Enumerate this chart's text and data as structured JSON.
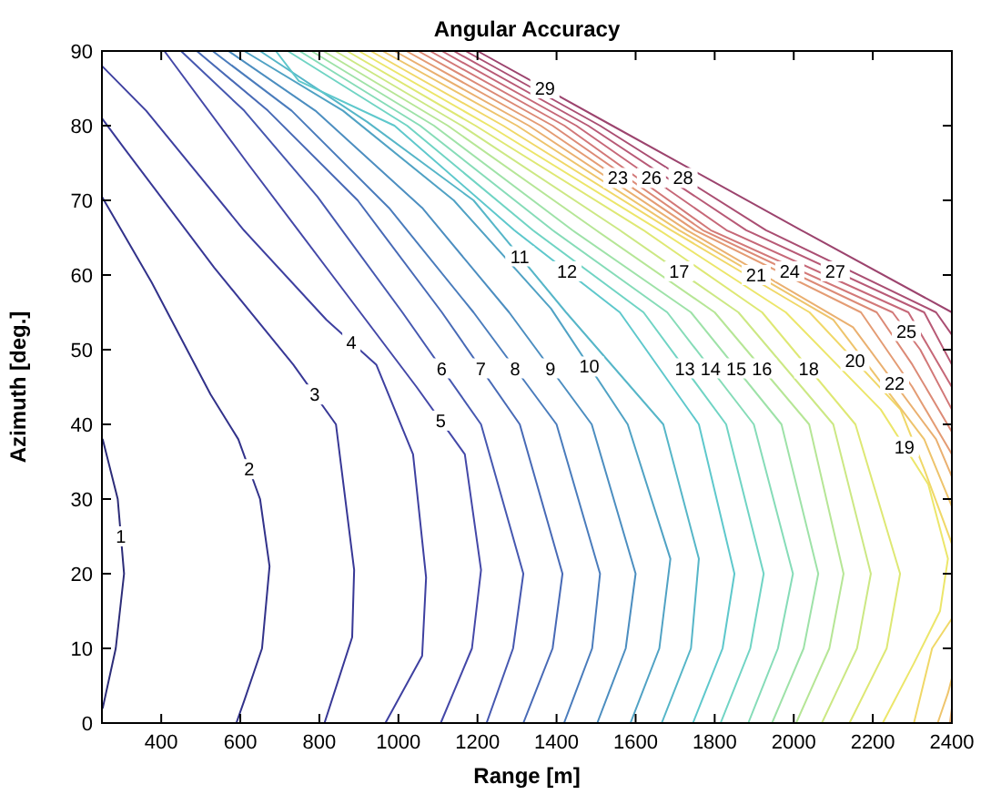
{
  "chart_data": {
    "type": "line",
    "title": "Angular Accuracy",
    "xlabel": "Range [m]",
    "ylabel": "Azimuth [deg.]",
    "xlim": [
      250,
      2400
    ],
    "ylim": [
      0,
      90
    ],
    "xticks": [
      400,
      600,
      800,
      1000,
      1200,
      1400,
      1600,
      1800,
      2000,
      2200,
      2400
    ],
    "yticks": [
      0,
      10,
      20,
      30,
      40,
      50,
      60,
      70,
      80,
      90
    ],
    "series": [
      {
        "name": "1",
        "color": "#2c2c78",
        "x": [
          252,
          285,
          306,
          290,
          252
        ],
        "values": [
          2,
          10,
          20,
          30,
          38
        ]
      },
      {
        "name": "2",
        "color": "#32328a",
        "x": [
          590,
          610,
          655,
          674,
          650,
          595,
          525,
          376,
          250
        ],
        "values": [
          0,
          3,
          10,
          21,
          30,
          38,
          44,
          59,
          70.5
        ]
      },
      {
        "name": "3",
        "color": "#383896",
        "x": [
          813,
          883,
          888,
          842,
          734,
          534,
          306,
          250
        ],
        "values": [
          0,
          11.5,
          20.5,
          40,
          48,
          61,
          77,
          81
        ]
      },
      {
        "name": "4",
        "color": "#3e40a0",
        "x": [
          967,
          1060,
          1070,
          1037,
          944,
          818,
          609,
          362,
          250
        ],
        "values": [
          0,
          9,
          19.5,
          36,
          48,
          54,
          66,
          82,
          88
        ]
      },
      {
        "name": "5",
        "color": "#4448a8",
        "x": [
          1107,
          1186,
          1209,
          1168,
          1046,
          832,
          618,
          408
        ],
        "values": [
          0,
          10,
          20.5,
          36,
          45,
          60,
          75,
          90
        ]
      },
      {
        "name": "6",
        "color": "#4658b0",
        "x": [
          1223,
          1290,
          1316,
          1209,
          1010,
          795,
          610,
          450
        ],
        "values": [
          0,
          10,
          20,
          40,
          55,
          70.5,
          82,
          90
        ]
      },
      {
        "name": "7",
        "color": "#486ab6",
        "x": [
          1316,
          1390,
          1415,
          1307,
          1110,
          897,
          670,
          490
        ],
        "values": [
          0,
          10,
          20,
          40,
          55,
          70,
          82,
          90
        ]
      },
      {
        "name": "8",
        "color": "#4a7cbc",
        "x": [
          1419,
          1490,
          1510,
          1400,
          1190,
          976,
          730,
          530
        ],
        "values": [
          0,
          10,
          20,
          40,
          55,
          69,
          82,
          90
        ]
      },
      {
        "name": "9",
        "color": "#4c8ec0",
        "x": [
          1503,
          1575,
          1600,
          1489,
          1280,
          1060,
          790,
          570
        ],
        "values": [
          0,
          10,
          20,
          40,
          55,
          69,
          82,
          90
        ]
      },
      {
        "name": "10",
        "color": "#50a2c4",
        "x": [
          1587,
          1660,
          1688,
          1580,
          1386,
          1140,
          860,
          610
        ],
        "values": [
          0,
          10,
          22,
          40,
          55.5,
          70,
          82,
          90
        ]
      },
      {
        "name": "11",
        "color": "#56b6c8",
        "x": [
          1666,
          1740,
          1760,
          1670,
          1424,
          1190,
          921,
          650
        ],
        "values": [
          0,
          10,
          22,
          40,
          55,
          70,
          80.5,
          90
        ]
      },
      {
        "name": "12",
        "color": "#5ec8cc",
        "x": [
          1745,
          1820,
          1850,
          1760,
          1560,
          1293,
          990,
          748,
          690
        ],
        "values": [
          0,
          10,
          20,
          40,
          55,
          66,
          80,
          86,
          90
        ]
      },
      {
        "name": "13",
        "color": "#70d4c4",
        "x": [
          1815,
          1890,
          1924,
          1829,
          1620,
          1340,
          1022,
          720
        ],
        "values": [
          0,
          10,
          20,
          40,
          55,
          66,
          80,
          90
        ]
      },
      {
        "name": "14",
        "color": "#86dcb8",
        "x": [
          1885,
          1960,
          1998,
          1899,
          1680,
          1390,
          1055,
          750
        ],
        "values": [
          0,
          10,
          20,
          40,
          55,
          66,
          80,
          90
        ]
      },
      {
        "name": "15",
        "color": "#9ee2a8",
        "x": [
          1945,
          2025,
          2062,
          1969,
          1740,
          1440,
          1090,
          780
        ],
        "values": [
          0,
          10,
          20,
          40,
          55,
          66,
          80,
          90
        ]
      },
      {
        "name": "16",
        "color": "#b6e696",
        "x": [
          2006,
          2090,
          2126,
          2039,
          1800,
          1500,
          1125,
          810
        ],
        "values": [
          0,
          10,
          20,
          40,
          55,
          66,
          80,
          90
        ]
      },
      {
        "name": "17",
        "color": "#cce884",
        "x": [
          2071,
          2160,
          2195,
          2100,
          1860,
          1560,
          1160,
          840
        ],
        "values": [
          0,
          10,
          20,
          40,
          55,
          66,
          80,
          90
        ]
      },
      {
        "name": "18",
        "color": "#dee874",
        "x": [
          2141,
          2235,
          2269,
          2156,
          1920,
          1620,
          1195,
          870
        ],
        "values": [
          0,
          10,
          20,
          40,
          55,
          66,
          80,
          90
        ]
      },
      {
        "name": "19",
        "color": "#ece66a",
        "x": [
          2225,
          2304,
          2370,
          2390,
          2340,
          2220,
          1980,
          1660,
          1230,
          900
        ],
        "values": [
          0,
          8,
          15,
          22,
          32,
          42,
          55,
          66,
          80,
          90
        ]
      },
      {
        "name": "20",
        "color": "#f0d868",
        "x": [
          2304,
          2350,
          2400,
          null,
          2400,
          2330,
          2270,
          2040,
          1690,
          1265,
          930
        ],
        "values": [
          0,
          10,
          14,
          null,
          24,
          34,
          42,
          55,
          66,
          80,
          90
        ]
      },
      {
        "name": "21",
        "color": "#eec46c",
        "x": [
          2364,
          2390,
          2400,
          null,
          2400,
          2330,
          2100,
          1710,
          1300,
          960
        ],
        "values": [
          0,
          4,
          6,
          null,
          29,
          38,
          54,
          66,
          80,
          90
        ]
      },
      {
        "name": "22",
        "color": "#eab070",
        "x": [
          2395,
          2400,
          null,
          2400,
          2360,
          2150,
          1730,
          1330,
          990
        ],
        "values": [
          0,
          2,
          null,
          33,
          38,
          53,
          66,
          80,
          90
        ]
      },
      {
        "name": "23",
        "color": "#e49c74",
        "x": [
          2400,
          2300,
          2170,
          1750,
          1360,
          1020
        ],
        "values": [
          36,
          45,
          55,
          66,
          80,
          90
        ]
      },
      {
        "name": "24",
        "color": "#dc8a76",
        "x": [
          2400,
          2300,
          2210,
          1770,
          1390,
          1050
        ],
        "values": [
          39,
          48,
          55,
          66,
          80,
          90
        ]
      },
      {
        "name": "25",
        "color": "#d27878",
        "x": [
          2400,
          2320,
          2250,
          1790,
          1420,
          1080
        ],
        "values": [
          42,
          50,
          55,
          66,
          80,
          90
        ]
      },
      {
        "name": "26",
        "color": "#c66878",
        "x": [
          2400,
          2290,
          1830,
          1450,
          1110
        ],
        "values": [
          45,
          55,
          66,
          80,
          90
        ]
      },
      {
        "name": "27",
        "color": "#b85a76",
        "x": [
          2400,
          2330,
          1880,
          1480,
          1140
        ],
        "values": [
          48,
          55,
          66,
          80,
          90
        ]
      },
      {
        "name": "28",
        "color": "#aa4e72",
        "x": [
          2400,
          2360,
          1930,
          1510,
          1170
        ],
        "values": [
          52,
          55,
          66,
          80,
          90
        ]
      },
      {
        "name": "29",
        "color": "#9c446e",
        "x": [
          2400,
          2019,
          1541,
          1200
        ],
        "values": [
          55,
          66,
          80,
          90
        ]
      }
    ]
  }
}
